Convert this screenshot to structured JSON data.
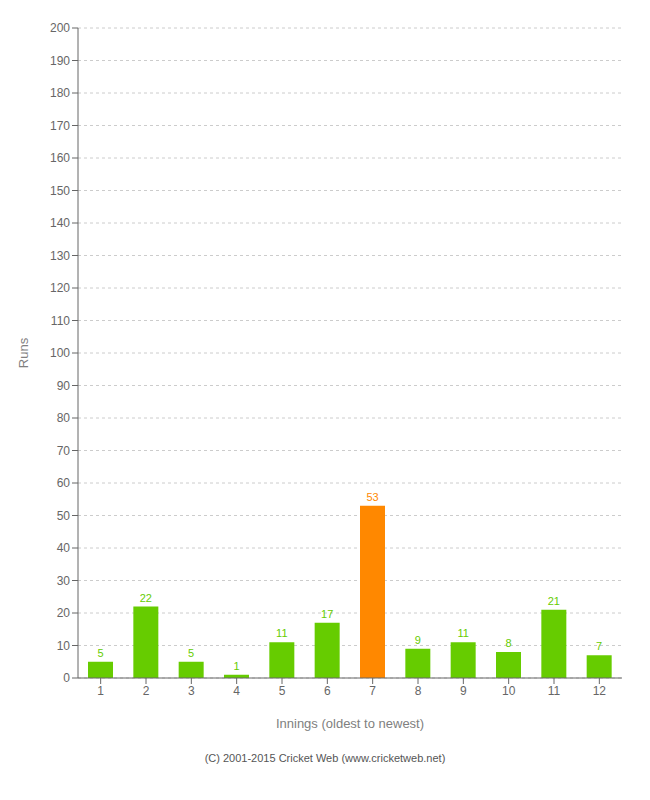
{
  "chart_data": {
    "type": "bar",
    "categories": [
      1,
      2,
      3,
      4,
      5,
      6,
      7,
      8,
      9,
      10,
      11,
      12
    ],
    "values": [
      5,
      22,
      5,
      1,
      11,
      17,
      53,
      9,
      11,
      8,
      21,
      7
    ],
    "colors": [
      "#66cc00",
      "#66cc00",
      "#66cc00",
      "#66cc00",
      "#66cc00",
      "#66cc00",
      "#ff8800",
      "#66cc00",
      "#66cc00",
      "#66cc00",
      "#66cc00",
      "#66cc00"
    ],
    "xlabel": "Innings (oldest to newest)",
    "ylabel": "Runs",
    "ylim": [
      0,
      200
    ],
    "yticks": [
      0,
      10,
      20,
      30,
      40,
      50,
      60,
      70,
      80,
      90,
      100,
      110,
      120,
      130,
      140,
      150,
      160,
      170,
      180,
      190,
      200
    ],
    "grid": true,
    "data_labels": true,
    "annotations": [
      "(C) 2001-2015 Cricket Web (www.cricketweb.net)"
    ]
  }
}
